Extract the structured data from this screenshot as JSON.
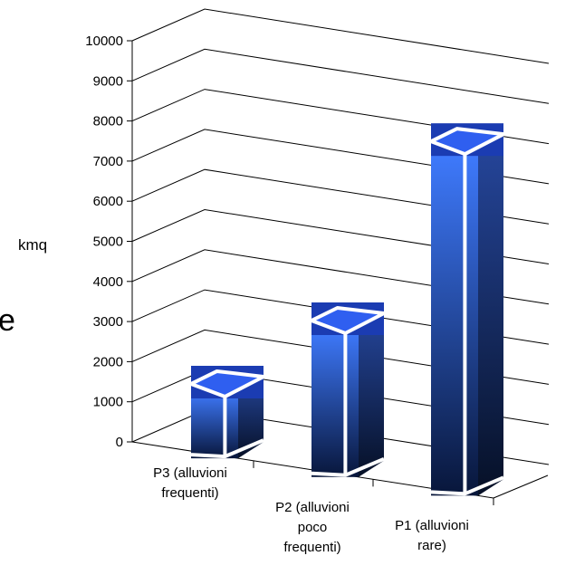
{
  "edge_fragment": "e",
  "chart_data": {
    "type": "bar",
    "style": "3d-column",
    "categories": [
      [
        "P3 (alluvioni",
        "frequenti)"
      ],
      [
        "P2 (alluvioni",
        "poco",
        "frequenti)"
      ],
      [
        "P1 (alluvioni",
        "rare)"
      ]
    ],
    "values": [
      1800,
      4000,
      9300
    ],
    "ylabel": "kmq",
    "ylim": [
      0,
      10000
    ],
    "yticks": [
      "0",
      "1000",
      "2000",
      "3000",
      "4000",
      "5000",
      "6000",
      "7000",
      "8000",
      "9000",
      "10000"
    ],
    "grid": true,
    "legend": "none",
    "colors": {
      "bar_light": "#3f7bff",
      "bar_dark": "#08163a",
      "side_light": "#26479e",
      "side_dark": "#061026",
      "edge": "#ffffff",
      "grid": "#000000"
    }
  }
}
